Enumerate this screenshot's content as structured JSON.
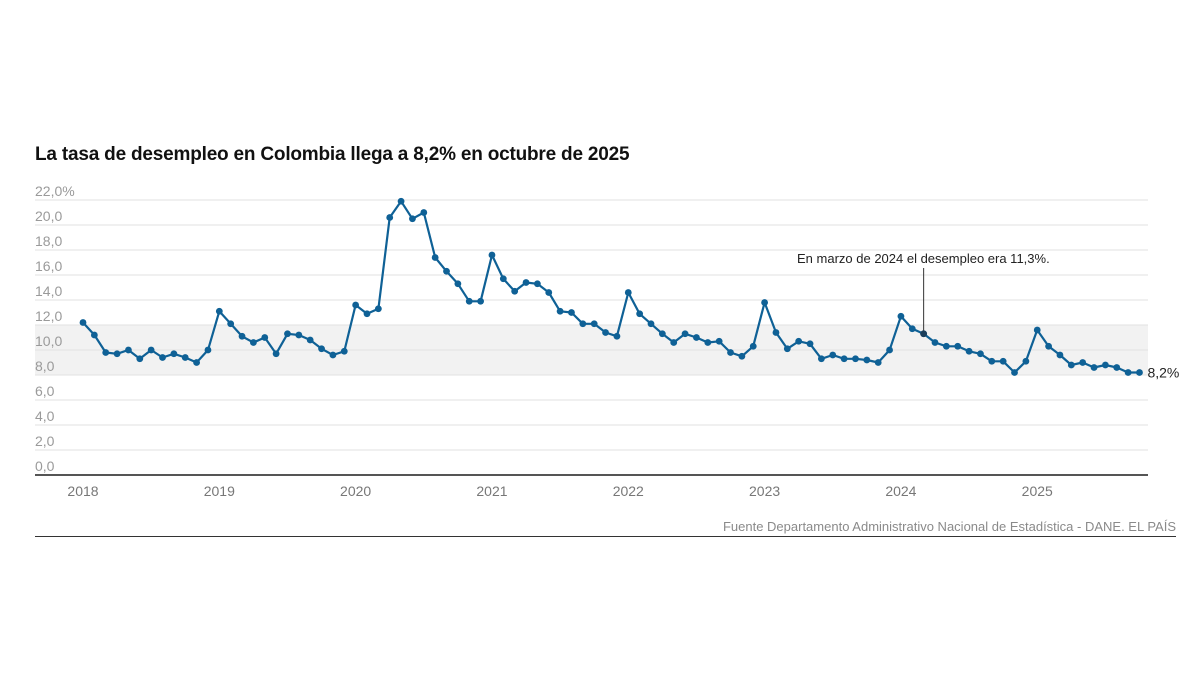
{
  "chart_data": {
    "type": "line",
    "title": "La tasa de desempleo en Colombia llega a 8,2% en octubre de 2025",
    "xlabel": "",
    "ylabel": "",
    "ylim": [
      0,
      22
    ],
    "y_ticks": [
      "0,0",
      "2,0",
      "4,0",
      "6,0",
      "8,0",
      "10,0",
      "12,0",
      "14,0",
      "16,0",
      "18,0",
      "20,0",
      "22,0%"
    ],
    "x_ticks": [
      "2018",
      "2019",
      "2020",
      "2021",
      "2022",
      "2023",
      "2024",
      "2025"
    ],
    "grid": true,
    "shaded_band": [
      8,
      12
    ],
    "start": "2018-01",
    "end": "2025-10",
    "frequency": "monthly",
    "series": [
      {
        "values": [
          12.2,
          11.2,
          9.8,
          9.7,
          10.0,
          9.3,
          10.0,
          9.4,
          9.7,
          9.4,
          9.0,
          10.0,
          13.1,
          12.1,
          11.1,
          10.6,
          11.0,
          9.7,
          11.3,
          11.2,
          10.8,
          10.1,
          9.6,
          9.9,
          13.6,
          12.9,
          13.3,
          20.6,
          21.9,
          20.5,
          21.0,
          17.4,
          16.3,
          15.3,
          13.9,
          13.9,
          17.6,
          15.7,
          14.7,
          15.4,
          15.3,
          14.6,
          13.1,
          13.0,
          12.1,
          12.1,
          11.4,
          11.1,
          14.6,
          12.9,
          12.1,
          11.3,
          10.6,
          11.3,
          11.0,
          10.6,
          10.7,
          9.8,
          9.5,
          10.3,
          13.8,
          11.4,
          10.1,
          10.7,
          10.5,
          9.3,
          9.6,
          9.3,
          9.3,
          9.2,
          9.0,
          10.0,
          12.7,
          11.7,
          11.3,
          10.6,
          10.3,
          10.3,
          9.9,
          9.7,
          9.1,
          9.1,
          8.2,
          9.1,
          11.6,
          10.3,
          9.6,
          8.8,
          9.0,
          8.6,
          8.8,
          8.6,
          8.2,
          8.2
        ]
      }
    ],
    "annotations": [
      {
        "text": "En marzo de 2024 el desempleo era 11,3%.",
        "x": "2024-03",
        "y": 11.3
      },
      {
        "text": "8,2%",
        "x": "2025-10",
        "y": 8.2
      }
    ],
    "source": "Fuente Departamento Administrativo Nacional de Estadística - DANE. EL PAÍS"
  },
  "colors": {
    "line": "#0f6196",
    "band": "#f2f2f2",
    "grid": "#e2e2e2",
    "axis": "#555555",
    "tick_text": "#9a9a9a"
  }
}
